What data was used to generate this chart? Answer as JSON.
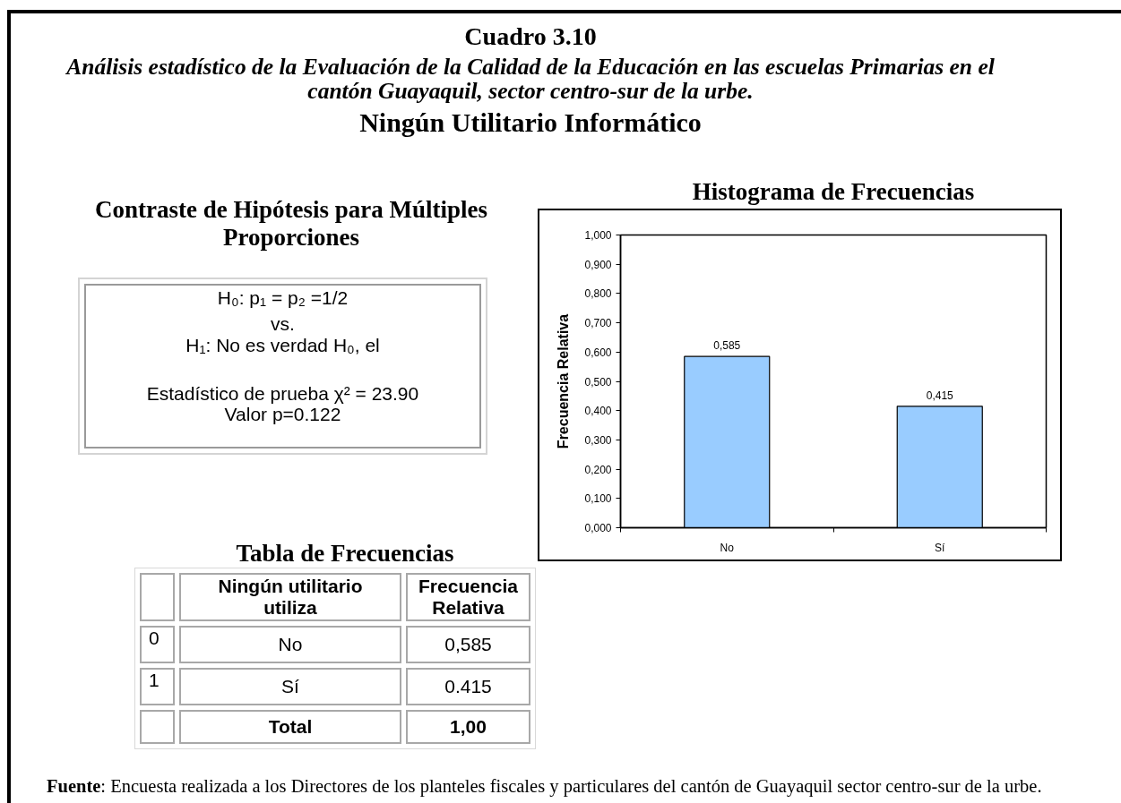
{
  "chart_data": {
    "type": "bar",
    "title": "Histograma de Frecuencias",
    "ylabel": "Frecuencia Relativa",
    "categories": [
      "No",
      "Sí"
    ],
    "values": [
      0.585,
      0.415
    ],
    "value_labels": [
      "0,585",
      "0,415"
    ],
    "color": "#99ccff",
    "ylim": [
      0,
      1
    ],
    "yticks": [
      {
        "value": 0,
        "label": "0,000"
      },
      {
        "value": 0.1,
        "label": "0,100"
      },
      {
        "value": 0.2,
        "label": "0,200"
      },
      {
        "value": 0.3,
        "label": "0,300"
      },
      {
        "value": 0.4,
        "label": "0,400"
      },
      {
        "value": 0.5,
        "label": "0,500"
      },
      {
        "value": 0.6,
        "label": "0,600"
      },
      {
        "value": 0.7,
        "label": "0,700"
      },
      {
        "value": 0.8,
        "label": "0,800"
      },
      {
        "value": 0.9,
        "label": "0,900"
      },
      {
        "value": 1,
        "label": "1,000"
      }
    ],
    "annotations": [
      "Cuadro 3.10",
      "Análisis estadístico de la Evaluación de la Calidad de la Educación en las escuelas Primarias en el cantón Guayaquil, sector centro-sur de la urbe.",
      "Ningún Utilitario Informático",
      "Contraste de Hipótesis para Múltiples Proporciones",
      "H₀: p₁ = p₂ =1/2",
      "vs.",
      "H₁: No es verdad H₀, el",
      "Estadístico de prueba χ² = 23.90",
      "Valor p=0.122",
      "Tabla de Frecuencias",
      "Ningún utilitario utiliza",
      "Frecuencia Relativa",
      "0",
      "No",
      "0,585",
      "1",
      "Sí",
      "0.415",
      "Total",
      "1,00",
      "Fuente: Encuesta realizada a los Directores de los planteles fiscales y particulares del cantón de Guayaquil sector centro-sur de la urbe."
    ]
  }
}
